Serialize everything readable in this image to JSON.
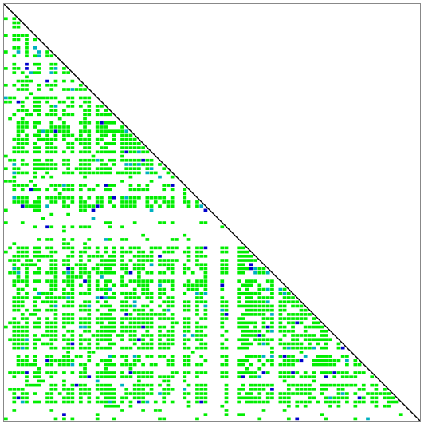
{
  "chart_data": {
    "type": "heatmap",
    "shape": "lower-triangular",
    "n": 100,
    "background": "#ffffff",
    "diagonal_color": "#000000",
    "frame_color": "#888888",
    "colors": {
      "dominant": "#00ee00",
      "secondary": "#00b0c0",
      "rare": "#0000cc"
    },
    "clusters": [
      {
        "start": 2,
        "end": 5
      },
      {
        "start": 7,
        "end": 8
      },
      {
        "start": 10,
        "end": 12
      },
      {
        "start": 14,
        "end": 16
      },
      {
        "start": 18,
        "end": 20
      },
      {
        "start": 22,
        "end": 24
      },
      {
        "start": 25,
        "end": 26
      },
      {
        "start": 28,
        "end": 35
      },
      {
        "start": 37,
        "end": 38
      },
      {
        "start": 39,
        "end": 40
      },
      {
        "start": 43,
        "end": 44
      },
      {
        "start": 46,
        "end": 48
      },
      {
        "start": 52,
        "end": 53
      },
      {
        "start": 56,
        "end": 57
      },
      {
        "start": 58,
        "end": 59
      },
      {
        "start": 60,
        "end": 61
      },
      {
        "start": 62,
        "end": 64
      },
      {
        "start": 66,
        "end": 67
      },
      {
        "start": 68,
        "end": 71
      },
      {
        "start": 72,
        "end": 74
      },
      {
        "start": 75,
        "end": 77
      },
      {
        "start": 78,
        "end": 79
      },
      {
        "start": 80,
        "end": 82
      },
      {
        "start": 84,
        "end": 86
      },
      {
        "start": 88,
        "end": 89
      },
      {
        "start": 91,
        "end": 92
      },
      {
        "start": 93,
        "end": 95
      }
    ],
    "empty_columns": [
      42,
      49,
      50,
      51,
      54,
      55,
      65
    ],
    "sparse_rows": [
      45,
      50,
      51,
      52,
      53,
      54,
      55,
      56,
      57
    ]
  }
}
